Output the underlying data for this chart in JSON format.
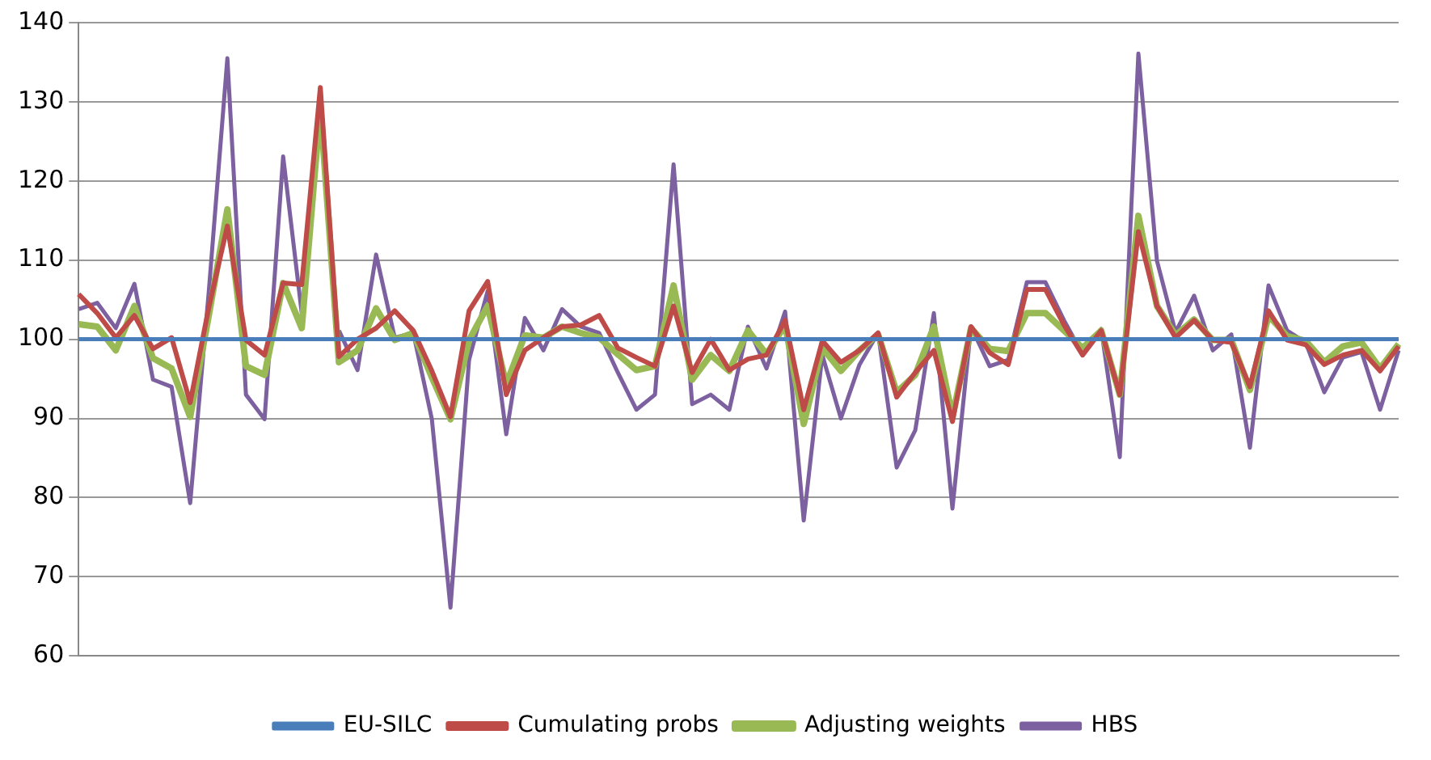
{
  "chart_data": {
    "type": "line",
    "categories": [
      null,
      null,
      null,
      null,
      null,
      null,
      null,
      null,
      null,
      null,
      null,
      null,
      null,
      null,
      null,
      null,
      null,
      null,
      null,
      null,
      null,
      null,
      null,
      null,
      null,
      null,
      null,
      null,
      null,
      null,
      null,
      null,
      null,
      null,
      null,
      null,
      null,
      null,
      null,
      null,
      null,
      null,
      null,
      null,
      null,
      null,
      null,
      null,
      null,
      null,
      null,
      null,
      null,
      null,
      null,
      null,
      null,
      null,
      null,
      null,
      null,
      null,
      null,
      null,
      null,
      null,
      null,
      null,
      null,
      null,
      null,
      null
    ],
    "series": [
      {
        "name": "EU-SILC",
        "color": "#4a7ebb",
        "values": [
          100,
          100,
          100,
          100,
          100,
          100,
          100,
          100,
          100,
          100,
          100,
          100,
          100,
          100,
          100,
          100,
          100,
          100,
          100,
          100,
          100,
          100,
          100,
          100,
          100,
          100,
          100,
          100,
          100,
          100,
          100,
          100,
          100,
          100,
          100,
          100,
          100,
          100,
          100,
          100,
          100,
          100,
          100,
          100,
          100,
          100,
          100,
          100,
          100,
          100,
          100,
          100,
          100,
          100,
          100,
          100,
          100,
          100,
          100,
          100,
          100,
          100,
          100,
          100,
          100,
          100,
          100,
          100,
          100,
          100,
          100,
          100
        ]
      },
      {
        "name": "Cumulating probs",
        "color": "#be4b48",
        "values": [
          105.7,
          103.3,
          100.2,
          103,
          98.8,
          100.2,
          92,
          104,
          114.3,
          99.9,
          98,
          107.1,
          106.9,
          131.8,
          97.8,
          100,
          101.4,
          103.6,
          101.1,
          96,
          90.2,
          103.6,
          107.3,
          93,
          98.6,
          100.2,
          101.6,
          101.8,
          103,
          98.9,
          97.7,
          96.6,
          104.2,
          95.8,
          100,
          96.1,
          97.5,
          98,
          102.4,
          91.1,
          99.8,
          97.1,
          98.6,
          100.8,
          92.7,
          95.8,
          98.6,
          89.6,
          101.6,
          98.3,
          96.8,
          106.3,
          106.3,
          101.8,
          98,
          101.1,
          93,
          113.6,
          104.2,
          100.2,
          102.4,
          99.9,
          99.6,
          94,
          103.6,
          99.9,
          99.3,
          96.8,
          98,
          98.6,
          96,
          99.1
        ]
      },
      {
        "name": "Adjusting weights",
        "color": "#98b954",
        "values": [
          101.9,
          101.6,
          98.6,
          104.2,
          97.6,
          96.3,
          90.2,
          103,
          116.4,
          96.6,
          95.5,
          107.1,
          101.4,
          129.3,
          97.1,
          98.6,
          103.9,
          99.9,
          100.8,
          95.2,
          89.9,
          99.9,
          104.2,
          94.3,
          100.5,
          100.2,
          101.6,
          100.8,
          100.2,
          98.1,
          96.1,
          96.6,
          106.8,
          94.9,
          98,
          96,
          101.1,
          98.1,
          101.8,
          89.3,
          98.9,
          96,
          98.6,
          100.6,
          93.3,
          95.5,
          101.6,
          90.2,
          101.4,
          98.8,
          98.5,
          103.3,
          103.3,
          101.1,
          98.9,
          101.1,
          93,
          115.6,
          104.2,
          100.5,
          102.5,
          99.9,
          99.9,
          93.6,
          103,
          100.4,
          99.8,
          97.1,
          99.1,
          99.6,
          96.3,
          99.4
        ]
      },
      {
        "name": "HBS",
        "color": "#7d60a0",
        "values": [
          103.8,
          104.6,
          101.4,
          107,
          94.9,
          94,
          79.3,
          106,
          135.5,
          93,
          89.9,
          123.1,
          103.3,
          null,
          101.1,
          96.1,
          110.7,
          100.2,
          100.8,
          89.9,
          66.1,
          97.4,
          106.1,
          88,
          102.7,
          98.6,
          103.8,
          101.6,
          100.8,
          95.8,
          91.1,
          93,
          122.1,
          91.8,
          93,
          91.1,
          101.6,
          96.3,
          103.5,
          77.1,
          98,
          90,
          96.8,
          100.8,
          83.8,
          88.5,
          103.3,
          78.6,
          101.6,
          96.6,
          97.4,
          107.2,
          107.2,
          102.4,
          98.1,
          101.3,
          85.1,
          136.1,
          109.9,
          100.9,
          105.5,
          98.6,
          100.6,
          86.3,
          106.8,
          101.1,
          99.6,
          93.3,
          97.7,
          98.4,
          91.1,
          98.6
        ]
      }
    ],
    "ylim": [
      60,
      140
    ],
    "yticks": [
      60,
      70,
      80,
      90,
      100,
      110,
      120,
      130,
      140
    ],
    "grid": "y",
    "legend": "bottom",
    "marker": "none",
    "line_style": "solid"
  }
}
